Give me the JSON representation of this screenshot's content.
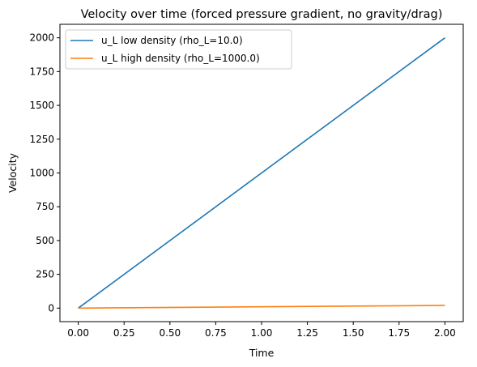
{
  "chart_data": {
    "type": "line",
    "title": "Velocity over time (forced pressure gradient, no gravity/drag)",
    "xlabel": "Time",
    "ylabel": "Velocity",
    "xlim": [
      -0.1,
      2.1
    ],
    "ylim": [
      -100,
      2100
    ],
    "x_ticks": [
      0.0,
      0.25,
      0.5,
      0.75,
      1.0,
      1.25,
      1.5,
      1.75,
      2.0
    ],
    "x_tick_labels": [
      "0.00",
      "0.25",
      "0.50",
      "0.75",
      "1.00",
      "1.25",
      "1.50",
      "1.75",
      "2.00"
    ],
    "y_ticks": [
      0,
      250,
      500,
      750,
      1000,
      1250,
      1500,
      1750,
      2000
    ],
    "y_tick_labels": [
      "0",
      "250",
      "500",
      "750",
      "1000",
      "1250",
      "1500",
      "1750",
      "2000"
    ],
    "grid": false,
    "legend_position": "upper-left",
    "series": [
      {
        "name": "u_L low density (rho_L=10.0)",
        "color": "#1f77b4",
        "x": [
          0.0,
          2.0
        ],
        "y": [
          0,
          2000
        ]
      },
      {
        "name": "u_L high density (rho_L=1000.0)",
        "color": "#ff7f0e",
        "x": [
          0.0,
          2.0
        ],
        "y": [
          0,
          20
        ]
      }
    ]
  }
}
